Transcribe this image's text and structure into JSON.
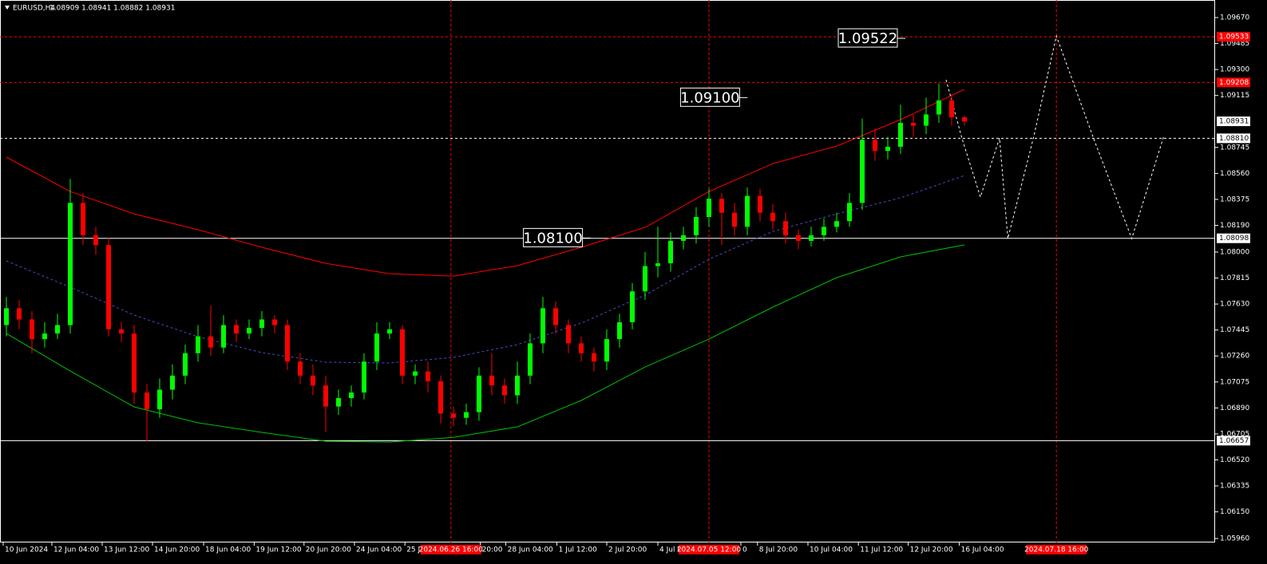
{
  "chart_data": {
    "type": "candlestick",
    "title": "EURUSD,H4",
    "subtitle": "1.08909 1.08941 1.08882 1.08931",
    "up_color": "#00ff00",
    "down_color": "#ff0000",
    "xlim": [
      -0.5,
      94.625
    ],
    "ylim": [
      1.05932,
      1.09795
    ],
    "yticks": [
      {
        "value": 1.0967,
        "label": "1.09670"
      },
      {
        "value": 1.09485,
        "label": "1.09485"
      },
      {
        "value": 1.093,
        "label": "1.09300"
      },
      {
        "value": 1.09115,
        "label": "1.09115"
      },
      {
        "value": 1.08745,
        "label": "1.08745"
      },
      {
        "value": 1.0856,
        "label": "1.08560"
      },
      {
        "value": 1.08375,
        "label": "1.08375"
      },
      {
        "value": 1.0819,
        "label": "1.08190"
      },
      {
        "value": 1.08,
        "label": "1.08000"
      },
      {
        "value": 1.07815,
        "label": "1.07815"
      },
      {
        "value": 1.0763,
        "label": "1.07630"
      },
      {
        "value": 1.07445,
        "label": "1.07445"
      },
      {
        "value": 1.0726,
        "label": "1.07260"
      },
      {
        "value": 1.07075,
        "label": "1.07075"
      },
      {
        "value": 1.0689,
        "label": "1.06890"
      },
      {
        "value": 1.06705,
        "label": "1.06705"
      },
      {
        "value": 1.0652,
        "label": "1.06520"
      },
      {
        "value": 1.06335,
        "label": "1.06335"
      },
      {
        "value": 1.0615,
        "label": "1.06150"
      },
      {
        "value": 1.0596,
        "label": "1.05960"
      }
    ],
    "xticks": [
      {
        "value": -0.25,
        "label": "10 Jun 2024"
      },
      {
        "value": 3.56,
        "label": "12 Jun 04:00"
      },
      {
        "value": 7.5,
        "label": "13 Jun 12:00"
      },
      {
        "value": 11.44,
        "label": "14 Jun 20:00"
      },
      {
        "value": 15.44,
        "label": "18 Jun 04:00"
      },
      {
        "value": 19.4,
        "label": "19 Jun 12:00"
      },
      {
        "value": 23.3,
        "label": "20 Jun 20:00"
      },
      {
        "value": 27.25,
        "label": "24 Jun 04:00"
      },
      {
        "value": 31.2,
        "label": "25 J"
      },
      {
        "value": 37.1,
        "label": "20:00"
      },
      {
        "value": 39.1,
        "label": "28 Jun 04:00"
      },
      {
        "value": 43.1,
        "label": "1 Jul 12:00"
      },
      {
        "value": 47,
        "label": "2 Jul 20:00"
      },
      {
        "value": 51,
        "label": "4 Jul 0"
      },
      {
        "value": 57.5,
        "label": "0"
      },
      {
        "value": 58.8,
        "label": "8 Jul 20:00"
      },
      {
        "value": 62.75,
        "label": "10 Jul 04:00"
      },
      {
        "value": 66.7,
        "label": "11 Jul 12:00"
      },
      {
        "value": 70.6,
        "label": "12 Jul 20:00"
      },
      {
        "value": 74.6,
        "label": "16 Jul 04:00"
      }
    ],
    "markers": [
      {
        "value": 34.8,
        "label": "2024.06.26 16:00"
      },
      {
        "value": 55,
        "label": "2024.07.05 12:00"
      },
      {
        "value": 82.2,
        "label": "2024.07.18 16:00"
      }
    ],
    "candles": {
      "open": [
        1.0748,
        1.076,
        1.0752,
        1.0738,
        1.0742,
        1.0748,
        1.0835,
        1.0812,
        1.0805,
        1.0745,
        1.0742,
        1.07,
        1.0688,
        1.0702,
        1.0712,
        1.0728,
        1.074,
        1.0732,
        1.0748,
        1.0742,
        1.0746,
        1.0752,
        1.0748,
        1.0722,
        1.0712,
        1.0705,
        1.069,
        1.0696,
        1.07,
        1.0722,
        1.0742,
        1.0745,
        1.0712,
        1.0715,
        1.0708,
        1.0685,
        1.0682,
        1.0686,
        1.0712,
        1.0705,
        1.0698,
        1.0712,
        1.0735,
        1.076,
        1.0748,
        1.0735,
        1.0728,
        1.0722,
        1.0738,
        1.075,
        1.0772,
        1.079,
        1.0792,
        1.0808,
        1.0812,
        1.0825,
        1.0838,
        1.0828,
        1.0818,
        1.084,
        1.0828,
        1.0822,
        1.0812,
        1.0808,
        1.0812,
        1.0818,
        1.0822,
        1.0835,
        1.088,
        1.0872,
        1.0875,
        1.0892,
        1.089,
        1.0898,
        1.0908,
        1.0896
      ],
      "high": [
        1.0768,
        1.0766,
        1.0758,
        1.075,
        1.0756,
        1.0852,
        1.0842,
        1.0818,
        1.081,
        1.075,
        1.0748,
        1.0706,
        1.071,
        1.072,
        1.0734,
        1.0748,
        1.0762,
        1.0755,
        1.0752,
        1.0752,
        1.0758,
        1.0755,
        1.0752,
        1.0728,
        1.072,
        1.0712,
        1.0702,
        1.0705,
        1.0728,
        1.075,
        1.075,
        1.0748,
        1.072,
        1.0722,
        1.0712,
        1.069,
        1.0692,
        1.0718,
        1.0728,
        1.071,
        1.0722,
        1.0742,
        1.0768,
        1.0765,
        1.0752,
        1.074,
        1.0732,
        1.0745,
        1.0756,
        1.0778,
        1.08,
        1.0818,
        1.0814,
        1.0818,
        1.0832,
        1.0845,
        1.0842,
        1.0835,
        1.0846,
        1.0845,
        1.0834,
        1.0828,
        1.0816,
        1.0818,
        1.0824,
        1.0828,
        1.0842,
        1.0895,
        1.0888,
        1.0882,
        1.0905,
        1.0898,
        1.091,
        1.092,
        1.0912,
        1.0897
      ],
      "low": [
        1.074,
        1.0745,
        1.0728,
        1.0732,
        1.0738,
        1.0742,
        1.0805,
        1.0798,
        1.074,
        1.0736,
        1.0692,
        1.0665,
        1.0682,
        1.0695,
        1.0706,
        1.0722,
        1.0726,
        1.0728,
        1.0736,
        1.0738,
        1.074,
        1.0742,
        1.0716,
        1.0706,
        1.0698,
        1.0672,
        1.0684,
        1.069,
        1.0695,
        1.0716,
        1.0738,
        1.0706,
        1.0706,
        1.07,
        1.0678,
        1.0676,
        1.0677,
        1.068,
        1.0698,
        1.0692,
        1.0692,
        1.0706,
        1.0728,
        1.0742,
        1.0728,
        1.0722,
        1.0715,
        1.0716,
        1.0732,
        1.0745,
        1.0766,
        1.0782,
        1.0786,
        1.0802,
        1.0806,
        1.0818,
        1.0805,
        1.0812,
        1.0812,
        1.0822,
        1.0816,
        1.0806,
        1.0802,
        1.0804,
        1.0808,
        1.0814,
        1.0818,
        1.083,
        1.0865,
        1.0866,
        1.087,
        1.0882,
        1.0884,
        1.0892,
        1.089,
        1.089
      ],
      "close": [
        1.076,
        1.0752,
        1.0738,
        1.0742,
        1.0748,
        1.0835,
        1.0812,
        1.0805,
        1.0745,
        1.0742,
        1.07,
        1.0688,
        1.0702,
        1.0712,
        1.0728,
        1.074,
        1.0732,
        1.0748,
        1.0742,
        1.0746,
        1.0752,
        1.0748,
        1.0722,
        1.0712,
        1.0705,
        1.069,
        1.0696,
        1.07,
        1.0722,
        1.0742,
        1.0745,
        1.0712,
        1.0715,
        1.0708,
        1.0685,
        1.0682,
        1.0686,
        1.0712,
        1.0705,
        1.0698,
        1.0712,
        1.0735,
        1.076,
        1.0748,
        1.0735,
        1.0728,
        1.0722,
        1.0738,
        1.075,
        1.0772,
        1.079,
        1.0792,
        1.0808,
        1.0812,
        1.0825,
        1.0838,
        1.0828,
        1.0818,
        1.084,
        1.0828,
        1.0822,
        1.0812,
        1.0808,
        1.0812,
        1.0818,
        1.0822,
        1.0835,
        1.088,
        1.0872,
        1.0875,
        1.0892,
        1.089,
        1.0898,
        1.0908,
        1.0896,
        1.0893
      ]
    },
    "lines": [
      {
        "color": "#ff0000",
        "dash": false,
        "x": [
          0,
          5,
          10,
          15,
          20,
          25,
          30,
          35,
          40,
          45,
          50,
          55,
          60,
          65,
          70,
          75
        ],
        "values": [
          1.08676,
          1.08431,
          1.08272,
          1.08159,
          1.08034,
          1.0792,
          1.07846,
          1.07829,
          1.07903,
          1.08034,
          1.08176,
          1.08431,
          1.0863,
          1.08755,
          1.08943,
          1.09159
        ]
      },
      {
        "color": "#4a4ad0",
        "dash": true,
        "x": [
          0,
          5,
          10,
          15,
          20,
          25,
          30,
          35,
          40,
          45,
          50,
          55,
          60,
          65,
          70,
          75
        ],
        "values": [
          1.07937,
          1.0775,
          1.07551,
          1.07397,
          1.07284,
          1.07216,
          1.0721,
          1.0725,
          1.07341,
          1.07494,
          1.07693,
          1.07949,
          1.08147,
          1.08272,
          1.08386,
          1.08545
        ]
      },
      {
        "color": "#00c000",
        "dash": false,
        "x": [
          0,
          5,
          10,
          15,
          20,
          25,
          30,
          35,
          40,
          45,
          50,
          55,
          60,
          65,
          70,
          75
        ],
        "values": [
          1.0742,
          1.07153,
          1.06897,
          1.06784,
          1.06716,
          1.06653,
          1.06647,
          1.06681,
          1.06755,
          1.06943,
          1.07181,
          1.0738,
          1.07608,
          1.07818,
          1.07966,
          1.08051
        ]
      },
      {
        "color": "#ffffff",
        "dash": true,
        "x": [
          73.56,
          74.8,
          76.25,
          77.75,
          78.4,
          80.4,
          82.2,
          85.1,
          88.1,
          90.6
        ],
        "values": [
          1.09227,
          1.08812,
          1.08392,
          1.08812,
          1.08096,
          1.08812,
          1.09539,
          1.08812,
          1.08096,
          1.08823
        ]
      }
    ],
    "levels": [
      {
        "value": 1.09533,
        "label": "1.09533",
        "color": "#ff0000",
        "dash": true
      },
      {
        "value": 1.09208,
        "label": "1.09208",
        "color": "#ff0000",
        "dash": true
      },
      {
        "value": 1.0881,
        "label": "1.08810",
        "color": "#ffffff",
        "dash": true
      },
      {
        "value": 1.08098,
        "label": "1.08098",
        "color": "#ffffff",
        "dash": false
      },
      {
        "value": 1.06657,
        "label": "1.06657",
        "color": "#ffffff",
        "dash": false
      }
    ],
    "current_price": {
      "value": 1.08931,
      "label": "1.08931"
    },
    "annotations": [
      {
        "x": 69.75,
        "value": 1.09522,
        "label": "1.09522"
      },
      {
        "x": 57.4,
        "value": 1.091,
        "label": "1.09100"
      },
      {
        "x": 45.1,
        "value": 1.081,
        "label": "1.08100"
      }
    ]
  }
}
